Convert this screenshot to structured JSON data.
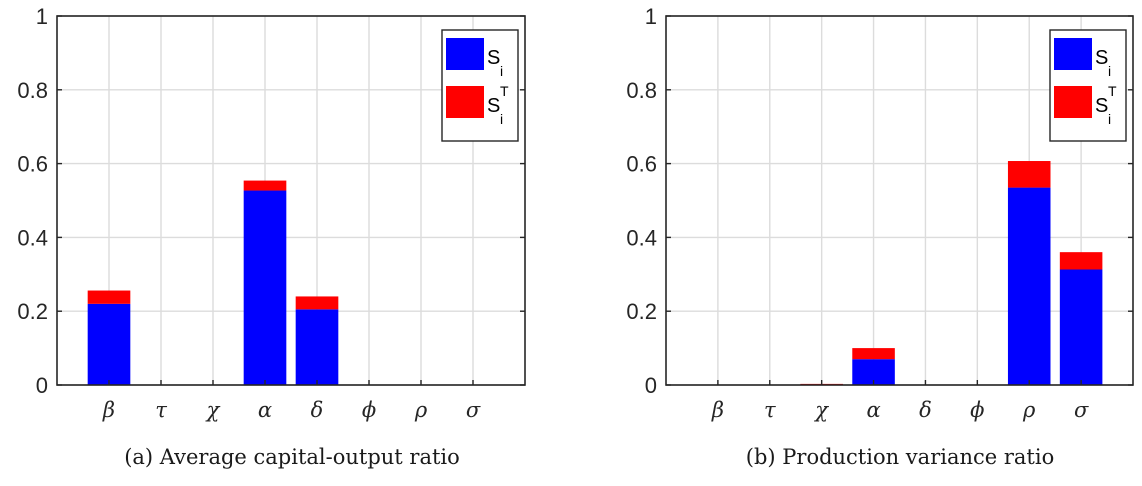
{
  "chart_data": [
    {
      "type": "bar",
      "stacked": true,
      "title": "",
      "caption": "(a) Average capital-output ratio",
      "categories": [
        "β",
        "τ",
        "χ",
        "α",
        "δ",
        "ϕ",
        "ρ",
        "σ"
      ],
      "series": [
        {
          "name": "S_i",
          "color": "#0000ff",
          "values": [
            0.22,
            0.0,
            0.0,
            0.527,
            0.205,
            0.0,
            0.0,
            0.0
          ]
        },
        {
          "name": "S_i^T",
          "color": "#ff0000",
          "values": [
            0.036,
            0.0,
            0.0,
            0.027,
            0.035,
            0.0,
            0.0,
            0.0
          ]
        }
      ],
      "ylim": [
        0,
        1
      ],
      "yticks": [
        "0",
        "0.2",
        "0.4",
        "0.6",
        "0.8",
        "1"
      ],
      "grid": true,
      "legend_position": "top-right"
    },
    {
      "type": "bar",
      "stacked": true,
      "title": "",
      "caption": "(b) Production variance ratio",
      "categories": [
        "β",
        "τ",
        "χ",
        "α",
        "δ",
        "ϕ",
        "ρ",
        "σ"
      ],
      "series": [
        {
          "name": "S_i",
          "color": "#0000ff",
          "values": [
            0.0,
            0.0,
            0.0,
            0.07,
            0.0,
            0.0,
            0.535,
            0.313
          ]
        },
        {
          "name": "S_i^T",
          "color": "#ff0000",
          "values": [
            0.0,
            0.0,
            0.003,
            0.03,
            0.0,
            0.0,
            0.072,
            0.047
          ]
        }
      ],
      "ylim": [
        0,
        1
      ],
      "yticks": [
        "0",
        "0.2",
        "0.4",
        "0.6",
        "0.8",
        "1"
      ],
      "grid": true,
      "legend_position": "top-right"
    }
  ],
  "legend": {
    "si_base": "S",
    "si_sub": "i",
    "sti_base": "S",
    "sti_sub": "i",
    "sti_sup": "T"
  }
}
